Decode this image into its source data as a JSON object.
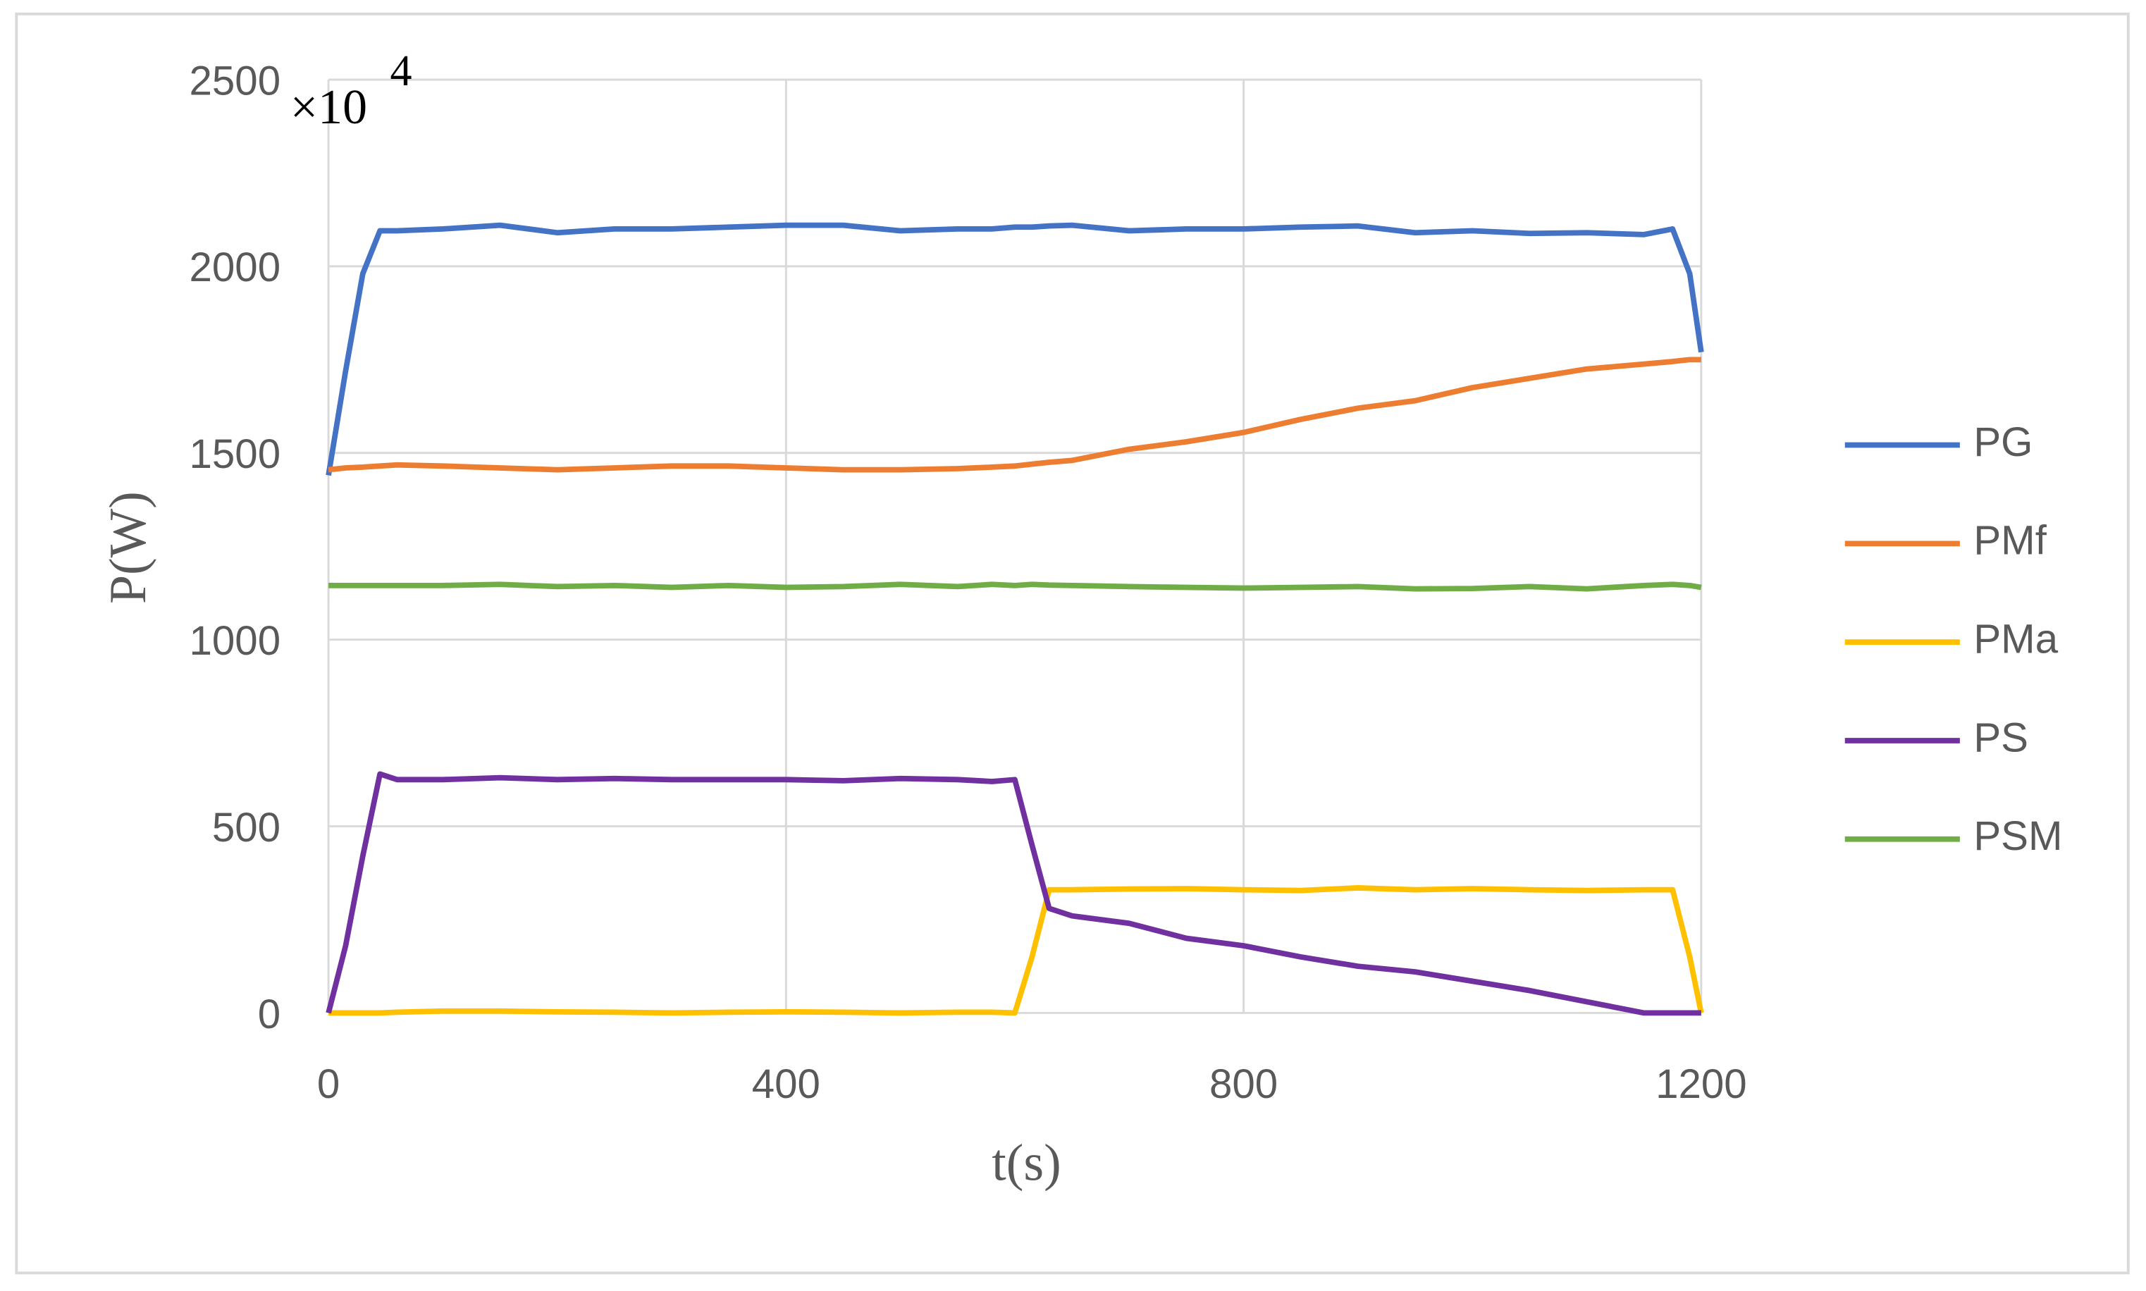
{
  "chart_data": {
    "type": "line",
    "x_label": "t(s)",
    "y_label": "P(W)",
    "multiplier": {
      "base": "×10",
      "exponent": "4"
    },
    "x": [
      0,
      15,
      30,
      45,
      60,
      100,
      150,
      200,
      250,
      300,
      350,
      400,
      450,
      500,
      550,
      580,
      600,
      615,
      630,
      650,
      700,
      750,
      800,
      850,
      900,
      950,
      1000,
      1050,
      1100,
      1150,
      1175,
      1190,
      1200
    ],
    "series": [
      {
        "name": "PG",
        "color": "#4472c4",
        "values": [
          1440,
          1720,
          1980,
          2095,
          2095,
          2100,
          2110,
          2090,
          2100,
          2100,
          2105,
          2110,
          2110,
          2095,
          2100,
          2100,
          2105,
          2105,
          2108,
          2110,
          2095,
          2100,
          2100,
          2105,
          2108,
          2090,
          2095,
          2088,
          2090,
          2085,
          2100,
          1980,
          1770
        ]
      },
      {
        "name": "PMf",
        "color": "#ed7d31",
        "values": [
          1455,
          1460,
          1462,
          1465,
          1468,
          1465,
          1460,
          1455,
          1460,
          1465,
          1465,
          1460,
          1455,
          1455,
          1458,
          1462,
          1465,
          1470,
          1475,
          1480,
          1510,
          1530,
          1555,
          1590,
          1620,
          1640,
          1675,
          1700,
          1725,
          1738,
          1745,
          1750,
          1750
        ]
      },
      {
        "name": "PMa",
        "color": "#ffc000",
        "values": [
          0,
          0,
          0,
          0,
          2,
          5,
          5,
          3,
          2,
          0,
          2,
          3,
          2,
          0,
          2,
          2,
          0,
          150,
          330,
          330,
          332,
          333,
          330,
          328,
          335,
          330,
          333,
          330,
          328,
          330,
          330,
          150,
          0
        ]
      },
      {
        "name": "PS",
        "color": "#7030a0",
        "values": [
          0,
          180,
          420,
          640,
          625,
          625,
          630,
          625,
          628,
          625,
          625,
          625,
          622,
          628,
          625,
          620,
          625,
          450,
          280,
          260,
          240,
          200,
          180,
          150,
          125,
          110,
          85,
          60,
          30,
          0,
          0,
          0,
          0
        ]
      },
      {
        "name": "PSM",
        "color": "#70ad47",
        "values": [
          1145,
          1145,
          1145,
          1145,
          1145,
          1145,
          1148,
          1142,
          1145,
          1140,
          1145,
          1140,
          1142,
          1148,
          1142,
          1148,
          1145,
          1148,
          1146,
          1145,
          1142,
          1140,
          1138,
          1140,
          1142,
          1136,
          1137,
          1142,
          1136,
          1145,
          1148,
          1145,
          1140
        ]
      }
    ],
    "xlim": [
      0,
      1200
    ],
    "xticks": [
      0,
      400,
      800,
      1200
    ],
    "ylim": [
      0,
      2500
    ],
    "yticks": [
      0,
      500,
      1000,
      1500,
      2000,
      2500
    ],
    "grid": true,
    "legend": "right"
  }
}
